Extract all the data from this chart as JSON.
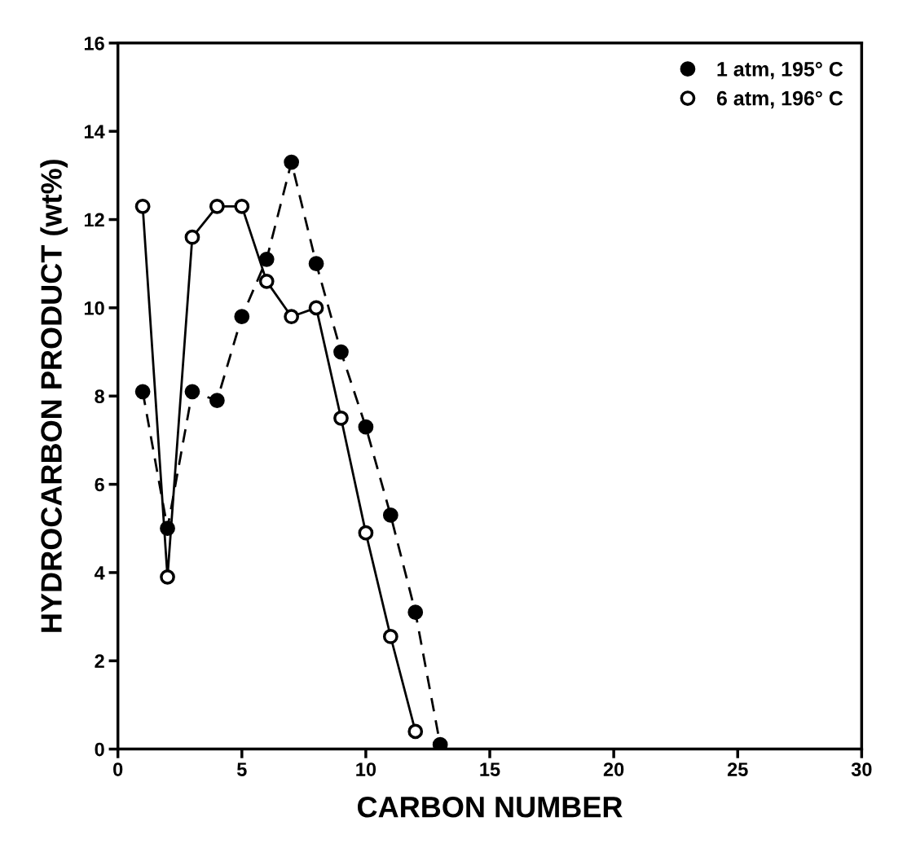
{
  "chart_data": {
    "type": "line",
    "xlabel": "CARBON NUMBER",
    "ylabel": "HYDROCARBON PRODUCT (wt%)",
    "xlim": [
      0,
      30
    ],
    "xticks": [
      0,
      5,
      10,
      15,
      20,
      25,
      30
    ],
    "ylim": [
      0,
      16
    ],
    "yticks": [
      0,
      2,
      4,
      6,
      8,
      10,
      12,
      14,
      16
    ],
    "grid": false,
    "legend": "top right",
    "marker": "circle",
    "series": [
      {
        "name": "1 atm, 195° C",
        "color": "#000000",
        "line_style": "dashed",
        "x": [
          1,
          2,
          3,
          4,
          5,
          6,
          7,
          8,
          9,
          10,
          11,
          12,
          13
        ],
        "values": [
          8.1,
          5.0,
          8.1,
          7.9,
          9.8,
          11.1,
          13.3,
          11.0,
          9.0,
          7.3,
          5.3,
          3.1,
          0.1
        ]
      },
      {
        "name": "6 atm, 196° C",
        "color": "#000000",
        "line_style": "solid",
        "x": [
          1,
          2,
          3,
          4,
          5,
          6,
          7,
          8,
          9,
          10,
          11,
          12
        ],
        "values": [
          12.3,
          3.9,
          11.6,
          12.3,
          12.3,
          10.6,
          9.8,
          10.0,
          7.5,
          4.9,
          2.55,
          0.4
        ]
      }
    ]
  }
}
